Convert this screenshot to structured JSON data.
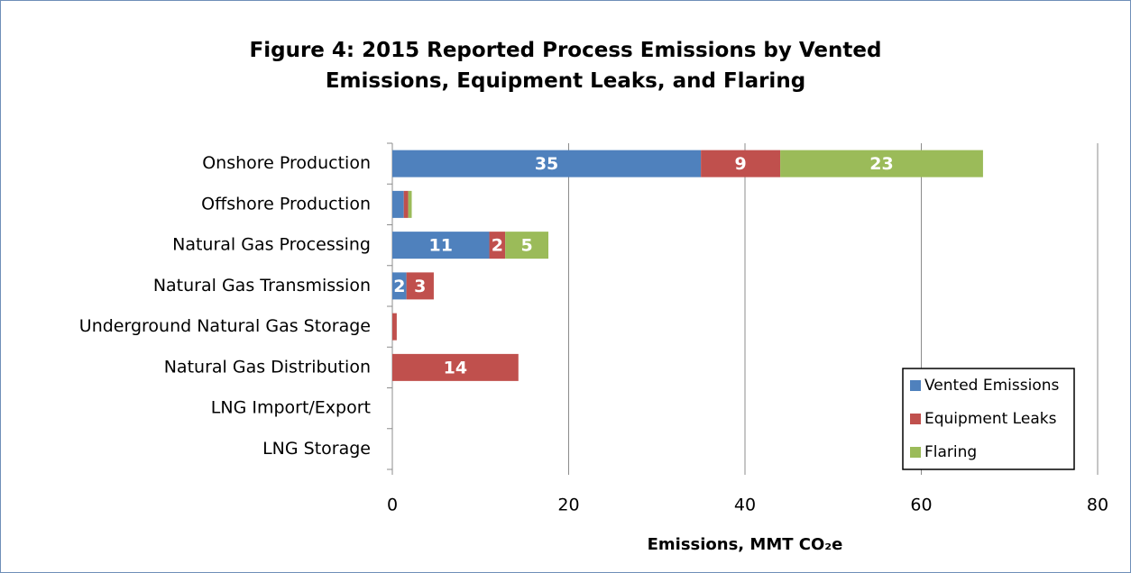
{
  "chart_data": {
    "type": "stacked_barh",
    "title": "Figure 4: 2015 Reported Process Emissions by Vented Emissions, Equipment Leaks, and Flaring",
    "x_label": "Emissions, MMT CO₂e",
    "categories": [
      "Onshore Production",
      "Offshore Production",
      "Natural Gas Processing",
      "Natural Gas Transmission",
      "Underground Natural Gas Storage",
      "Natural Gas Distribution",
      "LNG Import/Export",
      "LNG Storage"
    ],
    "series": [
      {
        "name": "Vented Emissions",
        "color": "#4f81bd",
        "values": [
          35,
          1.3,
          11,
          1.6,
          0,
          0,
          0,
          0
        ],
        "value_labels": [
          "35",
          null,
          "11",
          "2",
          null,
          null,
          null,
          null
        ]
      },
      {
        "name": "Equipment Leaks",
        "color": "#c0504d",
        "values": [
          9,
          0.5,
          1.8,
          3.1,
          0.5,
          14.3,
          0,
          0
        ],
        "value_labels": [
          "9",
          null,
          "2",
          "3",
          null,
          "14",
          null,
          null
        ]
      },
      {
        "name": "Flaring",
        "color": "#9bbb59",
        "values": [
          23,
          0.4,
          4.9,
          0,
          0,
          0,
          0,
          0
        ],
        "value_labels": [
          "23",
          null,
          "5",
          null,
          null,
          null,
          null,
          null
        ]
      }
    ],
    "xlim": [
      0,
      80
    ],
    "xticks": [
      0,
      20,
      40,
      60,
      80
    ],
    "grid": true,
    "legend": "lower right"
  }
}
